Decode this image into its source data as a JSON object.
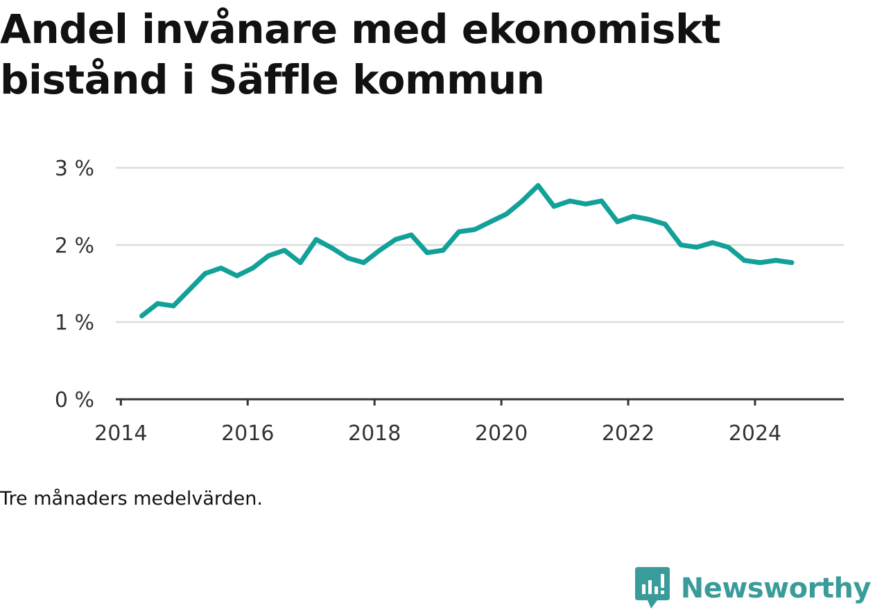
{
  "title": "Andel invånare med ekonomiskt bistånd i Säffle kommun",
  "footnote": "Tre månaders medelvärden.",
  "brand": {
    "name": "Newsworthy",
    "icon": "newsworthy-logo-icon",
    "color": "#3a9c9a"
  },
  "chart_data": {
    "type": "line",
    "title": "Andel invånare med ekonomiskt bistånd i Säffle kommun",
    "xlabel": "",
    "ylabel": "",
    "xlim": [
      2013.92,
      2025.4
    ],
    "ylim": [
      0,
      3
    ],
    "x_ticks": [
      {
        "value": 2014,
        "label": "2014"
      },
      {
        "value": 2016,
        "label": "2016"
      },
      {
        "value": 2018,
        "label": "2018"
      },
      {
        "value": 2020,
        "label": "2020"
      },
      {
        "value": 2022,
        "label": "2022"
      },
      {
        "value": 2024,
        "label": "2024"
      }
    ],
    "y_ticks": [
      {
        "value": 0,
        "label": "0 %"
      },
      {
        "value": 1,
        "label": "1 %"
      },
      {
        "value": 2,
        "label": "2 %"
      },
      {
        "value": 3,
        "label": "3 %"
      }
    ],
    "grid": true,
    "color": "#12a199",
    "series": [
      {
        "x": [
          2014.33,
          2014.58,
          2014.83,
          2015.08,
          2015.33,
          2015.58,
          2015.83,
          2016.08,
          2016.33,
          2016.58,
          2016.83,
          2017.08,
          2017.33,
          2017.58,
          2017.83,
          2018.08,
          2018.33,
          2018.58,
          2018.83,
          2019.08,
          2019.33,
          2019.58,
          2019.83,
          2020.08,
          2020.33,
          2020.58,
          2020.83,
          2021.08,
          2021.33,
          2021.58,
          2021.83,
          2022.08,
          2022.33,
          2022.58,
          2022.83,
          2023.08,
          2023.33,
          2023.58,
          2023.83,
          2024.08,
          2024.33,
          2024.58
        ],
        "values": [
          1.08,
          1.24,
          1.21,
          1.42,
          1.63,
          1.7,
          1.6,
          1.7,
          1.86,
          1.93,
          1.77,
          2.07,
          1.96,
          1.83,
          1.77,
          1.93,
          2.07,
          2.13,
          1.9,
          1.93,
          2.17,
          2.2,
          2.3,
          2.4,
          2.57,
          2.77,
          2.5,
          2.57,
          2.53,
          2.57,
          2.3,
          2.37,
          2.33,
          2.27,
          2.0,
          1.97,
          2.03,
          1.97,
          1.8,
          1.77,
          1.8,
          1.77
        ]
      }
    ]
  }
}
